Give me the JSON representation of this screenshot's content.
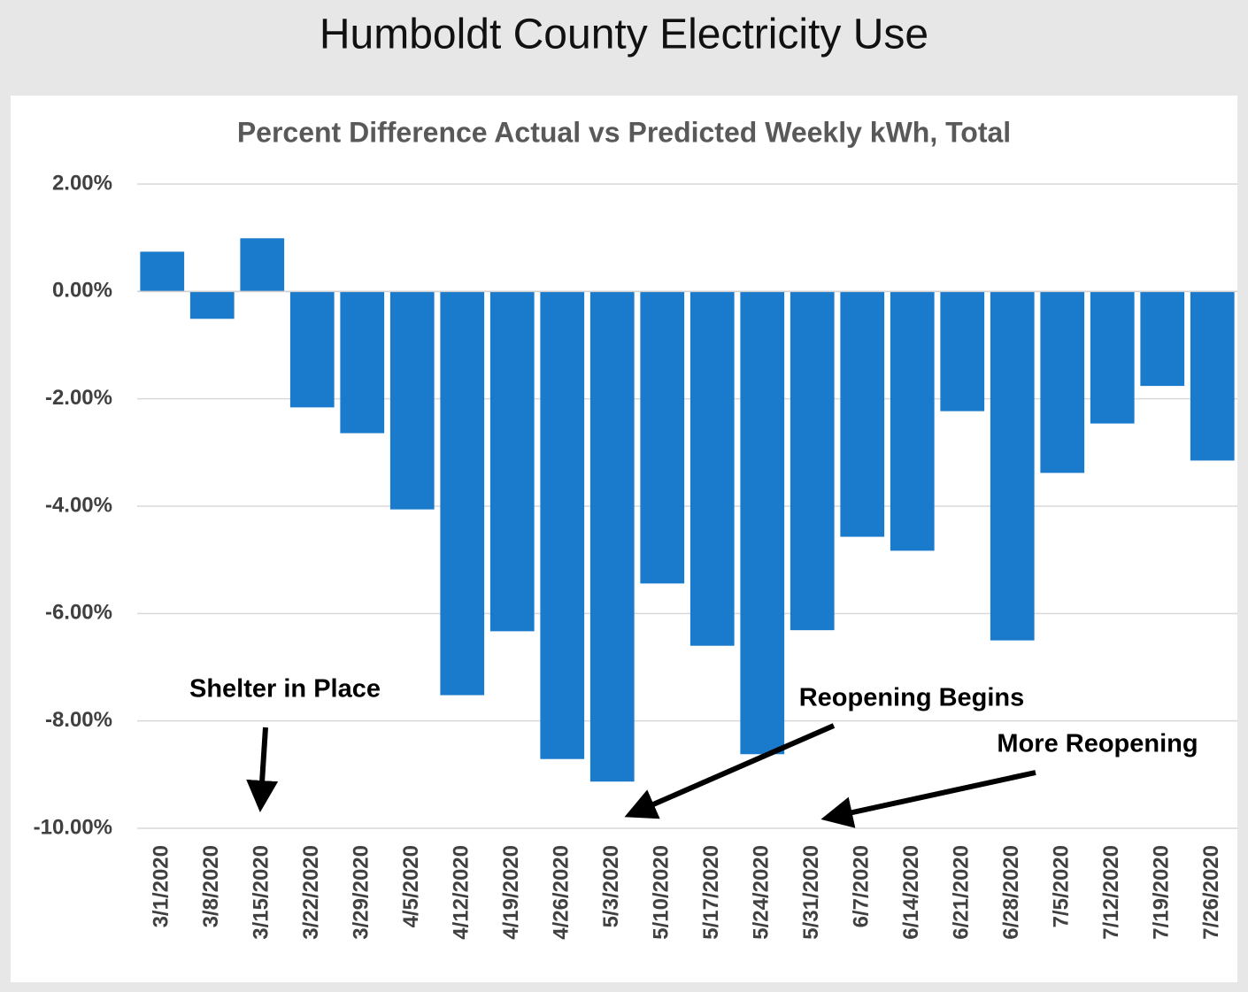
{
  "chart_data": {
    "type": "bar",
    "title": "Humboldt County Electricity Use",
    "subtitle": "Percent Difference Actual vs Predicted Weekly kWh, Total",
    "categories": [
      "3/1/2020",
      "3/8/2020",
      "3/15/2020",
      "3/22/2020",
      "3/29/2020",
      "4/5/2020",
      "4/12/2020",
      "4/19/2020",
      "4/26/2020",
      "5/3/2020",
      "5/10/2020",
      "5/17/2020",
      "5/24/2020",
      "5/31/2020",
      "6/7/2020",
      "6/14/2020",
      "6/21/2020",
      "6/28/2020",
      "7/5/2020",
      "7/12/2020",
      "7/19/2020",
      "7/26/2020"
    ],
    "values": [
      0.74,
      -0.51,
      0.99,
      -2.16,
      -2.64,
      -4.06,
      -7.52,
      -6.33,
      -8.71,
      -9.13,
      -5.44,
      -6.6,
      -8.62,
      -6.31,
      -4.57,
      -4.83,
      -2.23,
      -6.5,
      -3.38,
      -2.46,
      -1.76,
      -3.15
    ],
    "color": "#1a7acb",
    "ylim": [
      -10,
      2
    ],
    "yticks": [
      {
        "value": 2,
        "label": "2.00%"
      },
      {
        "value": 0,
        "label": "0.00%"
      },
      {
        "value": -2,
        "label": "-2.00%"
      },
      {
        "value": -4,
        "label": "-4.00%"
      },
      {
        "value": -6,
        "label": "-6.00%"
      },
      {
        "value": -8,
        "label": "-8.00%"
      },
      {
        "value": -10,
        "label": "-10.00%"
      }
    ],
    "grid": true,
    "annotations": [
      "Shelter in Place",
      "Reopening Begins",
      "More Reopening"
    ]
  }
}
